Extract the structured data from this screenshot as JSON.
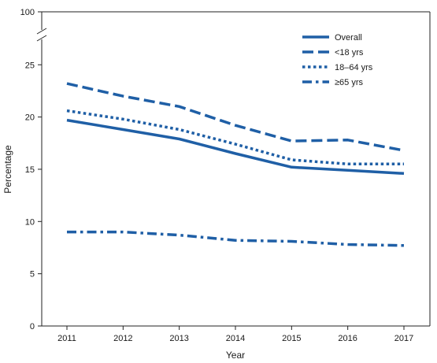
{
  "chart_data": {
    "type": "line",
    "xlabel": "Year",
    "ylabel": "Percentage",
    "x": [
      2011,
      2012,
      2013,
      2014,
      2015,
      2016,
      2017
    ],
    "y_ticks": [
      0,
      5,
      10,
      15,
      20,
      25,
      100
    ],
    "y_axis_break": "between 25 and 100",
    "ylim": [
      0,
      100
    ],
    "grid": false,
    "legend_position": "top-right",
    "line_color": "#1f5fa6",
    "series": [
      {
        "name": "Overall",
        "dash": "solid",
        "values": [
          19.7,
          18.8,
          17.9,
          16.5,
          15.2,
          14.9,
          14.6
        ]
      },
      {
        "name": "<18 yrs",
        "dash": "dashed",
        "values": [
          23.2,
          22.0,
          21.0,
          19.2,
          17.7,
          17.8,
          16.8
        ]
      },
      {
        "name": "18–64 yrs",
        "dash": "dotted",
        "values": [
          20.6,
          19.8,
          18.8,
          17.4,
          15.9,
          15.5,
          15.5
        ]
      },
      {
        "name": "≥65 yrs",
        "dash": "dash-dot",
        "values": [
          9.0,
          9.0,
          8.7,
          8.2,
          8.1,
          7.8,
          7.7
        ]
      }
    ]
  }
}
